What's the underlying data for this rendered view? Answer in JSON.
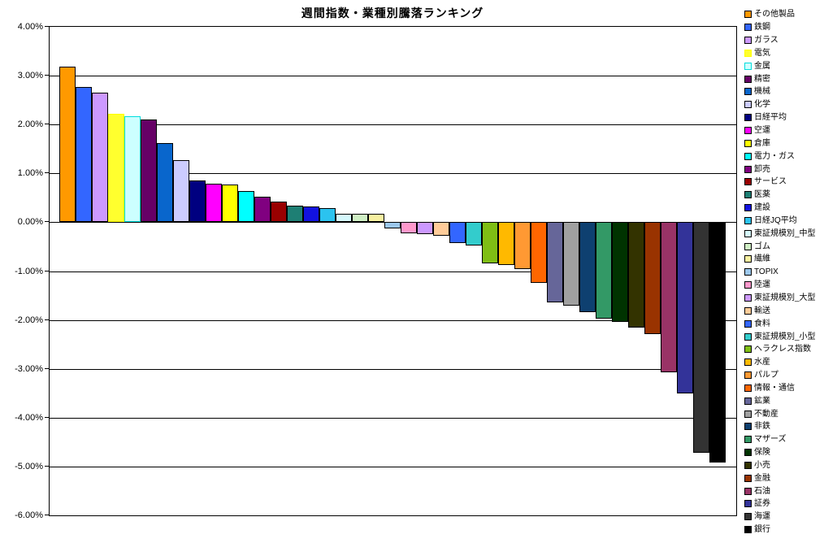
{
  "title": "週間指数・業種別騰落ランキング",
  "chart_data": {
    "type": "bar",
    "title": "週間指数・業種別騰落ランキング",
    "xlabel": "",
    "ylabel": "",
    "ylim": [
      -6,
      4
    ],
    "ytick_interval": 1,
    "ytick_format": "percent, two decimals",
    "grid": true,
    "legend_position": "right",
    "y_axis_labels": [
      "4.00%",
      "3.00%",
      "2.00%",
      "1.00%",
      "0.00%",
      "-1.00%",
      "-2.00%",
      "-3.00%",
      "-4.00%",
      "-5.00%",
      "-6.00%"
    ],
    "series": [
      {
        "name": "その他製品",
        "value": 3.18,
        "color": "#FF9900"
      },
      {
        "name": "鉄鋼",
        "value": 2.77,
        "color": "#3366FF"
      },
      {
        "name": "ガラス",
        "value": 2.64,
        "color": "#CC99FF"
      },
      {
        "name": "電気",
        "value": 2.21,
        "color": "#FFFF2E",
        "border": "#FFFF00"
      },
      {
        "name": "金属",
        "value": 2.16,
        "color": "#CCFFFF",
        "border": "#00DCDC"
      },
      {
        "name": "精密",
        "value": 2.09,
        "color": "#660066"
      },
      {
        "name": "機械",
        "value": 1.61,
        "color": "#0966CC"
      },
      {
        "name": "化学",
        "value": 1.26,
        "color": "#CCCCFF"
      },
      {
        "name": "日経平均",
        "value": 0.85,
        "color": "#000080"
      },
      {
        "name": "空運",
        "value": 0.78,
        "color": "#FF00FF"
      },
      {
        "name": "倉庫",
        "value": 0.77,
        "color": "#FFFF00"
      },
      {
        "name": "電力・ガス",
        "value": 0.63,
        "color": "#00FFFF"
      },
      {
        "name": "卸売",
        "value": 0.51,
        "color": "#800080"
      },
      {
        "name": "サービス",
        "value": 0.42,
        "color": "#990000"
      },
      {
        "name": "医薬",
        "value": 0.34,
        "color": "#1E7F74"
      },
      {
        "name": "建設",
        "value": 0.32,
        "color": "#1212E0"
      },
      {
        "name": "日経JQ平均",
        "value": 0.28,
        "color": "#2BC3EF"
      },
      {
        "name": "東証規模別_中型",
        "value": 0.17,
        "color": "#D5F8FC"
      },
      {
        "name": "ゴム",
        "value": 0.17,
        "color": "#CFEFC4"
      },
      {
        "name": "繊維",
        "value": 0.16,
        "color": "#F7F0A0"
      },
      {
        "name": "TOPIX",
        "value": -0.14,
        "color": "#9CC7EC"
      },
      {
        "name": "陸運",
        "value": -0.24,
        "color": "#FF99CC"
      },
      {
        "name": "東証規模別_大型",
        "value": -0.25,
        "color": "#CC99FF"
      },
      {
        "name": "輸送",
        "value": -0.28,
        "color": "#FFCC99"
      },
      {
        "name": "食料",
        "value": -0.44,
        "color": "#3366FF"
      },
      {
        "name": "東証規模別_小型",
        "value": -0.48,
        "color": "#33CCCC"
      },
      {
        "name": "ヘラクレス指数",
        "value": -0.85,
        "color": "#7FBE14"
      },
      {
        "name": "水産",
        "value": -0.88,
        "color": "#FFB900"
      },
      {
        "name": "パルプ",
        "value": -0.97,
        "color": "#FF9933"
      },
      {
        "name": "情報・通信",
        "value": -1.24,
        "color": "#FF6600"
      },
      {
        "name": "鉱業",
        "value": -1.65,
        "color": "#666699"
      },
      {
        "name": "不動産",
        "value": -1.71,
        "color": "#A0A0A0"
      },
      {
        "name": "非鉄",
        "value": -1.85,
        "color": "#0E4070"
      },
      {
        "name": "マザーズ",
        "value": -1.98,
        "color": "#339966"
      },
      {
        "name": "保険",
        "value": -2.04,
        "color": "#003300"
      },
      {
        "name": "小売",
        "value": -2.17,
        "color": "#333300"
      },
      {
        "name": "金融",
        "value": -2.29,
        "color": "#993300"
      },
      {
        "name": "石油",
        "value": -3.08,
        "color": "#993366"
      },
      {
        "name": "証券",
        "value": -3.51,
        "color": "#333399"
      },
      {
        "name": "海運",
        "value": -4.72,
        "color": "#333333"
      },
      {
        "name": "銀行",
        "value": -4.92,
        "color": "#000000"
      }
    ]
  }
}
